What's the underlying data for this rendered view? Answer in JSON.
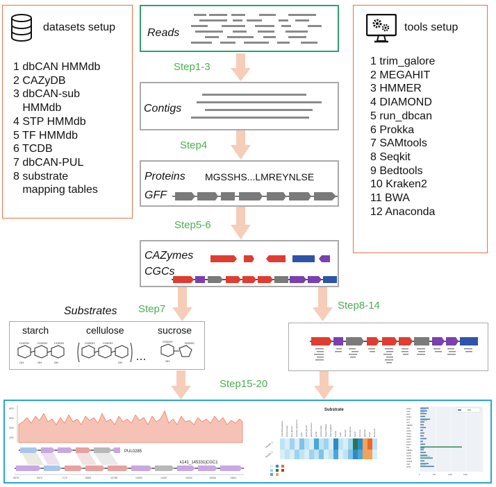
{
  "datasets": {
    "title": "datasets setup",
    "items": [
      "1 dbCAN HMMdb",
      "2 CAZyDB",
      "3 dbCAN-sub",
      "   HMMdb",
      "4 STP HMMdb",
      "5 TF HMMdb",
      "6 TCDB",
      "7 dbCAN-PUL",
      "8 substrate",
      "   mapping tables"
    ]
  },
  "tools": {
    "title": "tools setup",
    "items": [
      "1 trim_galore",
      "2 MEGAHIT",
      "3 HMMER",
      "4 DIAMOND",
      "5 run_dbcan",
      "6 Prokka",
      "7 SAMtools",
      "8 Seqkit",
      "9 Bedtools",
      "10 Kraken2",
      "11 BWA",
      "12 Anaconda"
    ]
  },
  "flow": {
    "reads": "Reads",
    "contigs": "Contigs",
    "proteins": "Proteins",
    "protein_seq": "MGSSHS...LMREYNLSE",
    "gff": "GFF",
    "cazymes": "CAZymes",
    "cgcs": "CGCs",
    "substrates": "Substrates",
    "starch": "starch",
    "cellulose": "cellulose",
    "sucrose": "sucrose",
    "steps": {
      "s1": "Step1-3",
      "s4": "Step4",
      "s5": "Step5-6",
      "s7": "Step7",
      "s8": "Step8-14",
      "s15": "Step15-20"
    }
  },
  "results": {
    "pul_label": "PUL0285",
    "cgc_label": "k141_145331|CGC1",
    "heatmap_title": "Substrate"
  },
  "colors": {
    "orange_border": "#e0714a",
    "green_border": "#2e9e6b",
    "blue_border": "#2ba3d4",
    "arrow": "#f5cdb8",
    "step_text": "#4caf50",
    "cazyme_red": "#e03c31",
    "cazyme_blue": "#2d54a8",
    "cazyme_purple": "#7a3fb0",
    "gene_grey": "#7a7a7a"
  }
}
